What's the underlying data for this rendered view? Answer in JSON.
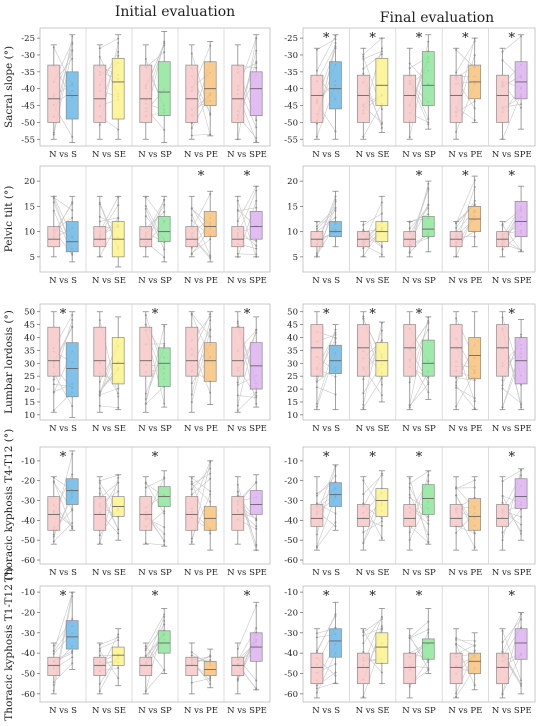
{
  "column_titles": [
    "Initial evaluation",
    "Final evaluation"
  ],
  "categories": [
    "N vs S",
    "N vs SE",
    "N vs SP",
    "N vs PE",
    "N vs SPE"
  ],
  "colors": {
    "normal": "#f8c8c8",
    "S": "#6ab7e6",
    "SE": "#fbf38a",
    "SP": "#8ee59c",
    "PE": "#f8c27a",
    "SPE": "#dcb2ef",
    "line": "#c8c8c8",
    "grid": "#d4d4d4"
  },
  "significance_marker": "*",
  "chart_data": [
    {
      "type": "box",
      "panel": "sacral-initial",
      "ylabel": "Sacral slope (°)",
      "yticks": [
        -25,
        -30,
        -35,
        -40,
        -45,
        -50,
        -55
      ],
      "ylim": [
        -57,
        -22
      ],
      "categories": [
        "N vs S",
        "N vs SE",
        "N vs SP",
        "N vs PE",
        "N vs SPE"
      ],
      "normal": {
        "q1": -50,
        "median": -43,
        "q3": -33,
        "whisker_low": -55,
        "whisker_high": -27
      },
      "compare": [
        {
          "q1": -49,
          "median": -42,
          "q3": -35,
          "whisker_low": -56,
          "whisker_high": -24
        },
        {
          "q1": -49,
          "median": -38,
          "q3": -31,
          "whisker_low": -55,
          "whisker_high": -24
        },
        {
          "q1": -48,
          "median": -41,
          "q3": -32,
          "whisker_low": -56,
          "whisker_high": -23
        },
        {
          "q1": -45,
          "median": -40,
          "q3": -32,
          "whisker_low": -54,
          "whisker_high": -26
        },
        {
          "q1": -48,
          "median": -40,
          "q3": -35,
          "whisker_low": -56,
          "whisker_high": -24
        }
      ],
      "significant": [
        false,
        false,
        false,
        false,
        false
      ]
    },
    {
      "type": "box",
      "panel": "sacral-final",
      "ylabel": "",
      "yticks": [
        -25,
        -30,
        -35,
        -40,
        -45,
        -50,
        -55
      ],
      "ylim": [
        -57,
        -22
      ],
      "categories": [
        "N vs S",
        "N vs SE",
        "N vs SP",
        "N vs PE",
        "N vs SPE"
      ],
      "normal": {
        "q1": -50,
        "median": -42,
        "q3": -36,
        "whisker_low": -55,
        "whisker_high": -28
      },
      "compare": [
        {
          "q1": -46,
          "median": -40,
          "q3": -32,
          "whisker_low": -55,
          "whisker_high": -24
        },
        {
          "q1": -45,
          "median": -39,
          "q3": -31,
          "whisker_low": -53,
          "whisker_high": -25
        },
        {
          "q1": -45,
          "median": -39,
          "q3": -29,
          "whisker_low": -52,
          "whisker_high": -24
        },
        {
          "q1": -43,
          "median": -38,
          "q3": -33,
          "whisker_low": -50,
          "whisker_high": -25
        },
        {
          "q1": -43,
          "median": -38,
          "q3": -32,
          "whisker_low": -52,
          "whisker_high": -24
        }
      ],
      "significant": [
        true,
        true,
        true,
        true,
        true
      ]
    },
    {
      "type": "box",
      "panel": "pelvic-initial",
      "ylabel": "Pelvic tilt (°)",
      "yticks": [
        5,
        10,
        15,
        20
      ],
      "ylim": [
        2,
        23
      ],
      "categories": [
        "N vs S",
        "N vs SE",
        "N vs SP",
        "N vs PE",
        "N vs SPE"
      ],
      "normal": {
        "q1": 7,
        "median": 8.5,
        "q3": 11,
        "whisker_low": 5,
        "whisker_high": 17
      },
      "compare": [
        {
          "q1": 6,
          "median": 8,
          "q3": 12,
          "whisker_low": 4,
          "whisker_high": 17
        },
        {
          "q1": 5,
          "median": 8.5,
          "q3": 12,
          "whisker_low": 3,
          "whisker_high": 17
        },
        {
          "q1": 8,
          "median": 10,
          "q3": 13,
          "whisker_low": 4,
          "whisker_high": 17
        },
        {
          "q1": 9,
          "median": 11,
          "q3": 14,
          "whisker_low": 4,
          "whisker_high": 18
        },
        {
          "q1": 8.5,
          "median": 11,
          "q3": 14,
          "whisker_low": 5,
          "whisker_high": 19
        }
      ],
      "significant": [
        false,
        false,
        false,
        true,
        true
      ]
    },
    {
      "type": "box",
      "panel": "pelvic-final",
      "ylabel": "",
      "yticks": [
        5,
        10,
        15,
        20
      ],
      "ylim": [
        2,
        23
      ],
      "categories": [
        "N vs S",
        "N vs SE",
        "N vs SP",
        "N vs PE",
        "N vs SPE"
      ],
      "normal": {
        "q1": 7,
        "median": 8.5,
        "q3": 10,
        "whisker_low": 5,
        "whisker_high": 12
      },
      "compare": [
        {
          "q1": 9,
          "median": 10,
          "q3": 12,
          "whisker_low": 7,
          "whisker_high": 18
        },
        {
          "q1": 8,
          "median": 10,
          "q3": 12,
          "whisker_low": 5,
          "whisker_high": 17
        },
        {
          "q1": 9,
          "median": 10.5,
          "q3": 13,
          "whisker_low": 6,
          "whisker_high": 20
        },
        {
          "q1": 10,
          "median": 12.5,
          "q3": 15,
          "whisker_low": 7,
          "whisker_high": 21
        },
        {
          "q1": 9,
          "median": 12,
          "q3": 16,
          "whisker_low": 6,
          "whisker_high": 19
        }
      ],
      "significant": [
        false,
        false,
        true,
        true,
        true
      ]
    },
    {
      "type": "box",
      "panel": "lumbar-initial",
      "ylabel": "Lumbar lordosis (°)",
      "yticks": [
        10,
        15,
        20,
        25,
        30,
        35,
        40,
        45,
        50
      ],
      "ylim": [
        8,
        53
      ],
      "categories": [
        "N vs S",
        "N vs SE",
        "N vs SP",
        "N vs PE",
        "N vs SPE"
      ],
      "normal": {
        "q1": 25,
        "median": 31,
        "q3": 44,
        "whisker_low": 11,
        "whisker_high": 50
      },
      "compare": [
        {
          "q1": 17,
          "median": 28,
          "q3": 38,
          "whisker_low": 9,
          "whisker_high": 50
        },
        {
          "q1": 22,
          "median": 30,
          "q3": 40,
          "whisker_low": 12,
          "whisker_high": 48
        },
        {
          "q1": 21,
          "median": 30,
          "q3": 36,
          "whisker_low": 13,
          "whisker_high": 45
        },
        {
          "q1": 23,
          "median": 31,
          "q3": 38,
          "whisker_low": 14,
          "whisker_high": 50
        },
        {
          "q1": 20,
          "median": 29,
          "q3": 38,
          "whisker_low": 13,
          "whisker_high": 48
        }
      ],
      "significant": [
        true,
        false,
        true,
        false,
        true
      ]
    },
    {
      "type": "box",
      "panel": "lumbar-final",
      "ylabel": "",
      "yticks": [
        10,
        15,
        20,
        25,
        30,
        35,
        40,
        45,
        50
      ],
      "ylim": [
        8,
        53
      ],
      "categories": [
        "N vs S",
        "N vs SE",
        "N vs SP",
        "N vs PE",
        "N vs SPE"
      ],
      "normal": {
        "q1": 25,
        "median": 36,
        "q3": 45,
        "whisker_low": 12,
        "whisker_high": 50
      },
      "compare": [
        {
          "q1": 26,
          "median": 31,
          "q3": 37,
          "whisker_low": 12,
          "whisker_high": 45
        },
        {
          "q1": 25,
          "median": 31,
          "q3": 38,
          "whisker_low": 15,
          "whisker_high": 46
        },
        {
          "q1": 25,
          "median": 30,
          "q3": 39,
          "whisker_low": 16,
          "whisker_high": 48
        },
        {
          "q1": 24,
          "median": 33,
          "q3": 40,
          "whisker_low": 12,
          "whisker_high": 50
        },
        {
          "q1": 22,
          "median": 31,
          "q3": 40,
          "whisker_low": 12,
          "whisker_high": 47
        }
      ],
      "significant": [
        true,
        true,
        true,
        false,
        true
      ]
    },
    {
      "type": "box",
      "panel": "thoracic-t4-initial",
      "ylabel": "Thoracic kyphosis T4-T12 (°)",
      "yticks": [
        -10,
        -20,
        -30,
        -40,
        -50,
        -60
      ],
      "ylim": [
        -62,
        -3
      ],
      "categories": [
        "N vs S",
        "N vs SE",
        "N vs SP",
        "N vs PE",
        "N vs SPE"
      ],
      "normal": {
        "q1": -45,
        "median": -37,
        "q3": -28,
        "whisker_low": -52,
        "whisker_high": -18
      },
      "compare": [
        {
          "q1": -32,
          "median": -25,
          "q3": -19,
          "whisker_low": -45,
          "whisker_high": -5
        },
        {
          "q1": -38,
          "median": -33,
          "q3": -28,
          "whisker_low": -50,
          "whisker_high": -17
        },
        {
          "q1": -33,
          "median": -28,
          "q3": -23,
          "whisker_low": -53,
          "whisker_high": -15
        },
        {
          "q1": -45,
          "median": -39,
          "q3": -33,
          "whisker_low": -55,
          "whisker_high": -10
        },
        {
          "q1": -37,
          "median": -32,
          "q3": -25,
          "whisker_low": -55,
          "whisker_high": -17
        }
      ],
      "significant": [
        true,
        false,
        true,
        false,
        false
      ]
    },
    {
      "type": "box",
      "panel": "thoracic-t4-final",
      "ylabel": "",
      "yticks": [
        -10,
        -20,
        -30,
        -40,
        -50,
        -60
      ],
      "ylim": [
        -62,
        -3
      ],
      "categories": [
        "N vs S",
        "N vs SE",
        "N vs SP",
        "N vs PE",
        "N vs SPE"
      ],
      "normal": {
        "q1": -43,
        "median": -39,
        "q3": -32,
        "whisker_low": -55,
        "whisker_high": -18
      },
      "compare": [
        {
          "q1": -33,
          "median": -27,
          "q3": -21,
          "whisker_low": -45,
          "whisker_high": -12
        },
        {
          "q1": -38,
          "median": -30,
          "q3": -24,
          "whisker_low": -50,
          "whisker_high": -15
        },
        {
          "q1": -37,
          "median": -29,
          "q3": -22,
          "whisker_low": -52,
          "whisker_high": -15
        },
        {
          "q1": -45,
          "median": -38,
          "q3": -29,
          "whisker_low": -55,
          "whisker_high": -18
        },
        {
          "q1": -34,
          "median": -28,
          "q3": -19,
          "whisker_low": -50,
          "whisker_high": -14
        }
      ],
      "significant": [
        true,
        true,
        true,
        false,
        true
      ]
    },
    {
      "type": "box",
      "panel": "thoracic-t1-initial",
      "ylabel": "Thoracic kyphosis T1-T12 (°)",
      "yticks": [
        -10,
        -20,
        -30,
        -40,
        -50,
        -60
      ],
      "ylim": [
        -64,
        -7
      ],
      "categories": [
        "N vs S",
        "N vs SE",
        "N vs SP",
        "N vs PE",
        "N vs SPE"
      ],
      "normal": {
        "q1": -51,
        "median": -46,
        "q3": -42,
        "whisker_low": -60,
        "whisker_high": -35
      },
      "compare": [
        {
          "q1": -38,
          "median": -32,
          "q3": -24,
          "whisker_low": -48,
          "whisker_high": -10
        },
        {
          "q1": -46,
          "median": -41,
          "q3": -37,
          "whisker_low": -56,
          "whisker_high": -28
        },
        {
          "q1": -40,
          "median": -35,
          "q3": -29,
          "whisker_low": -50,
          "whisker_high": -18
        },
        {
          "q1": -51,
          "median": -48,
          "q3": -44,
          "whisker_low": -57,
          "whisker_high": -38
        },
        {
          "q1": -44,
          "median": -37,
          "q3": -30,
          "whisker_low": -58,
          "whisker_high": -15
        }
      ],
      "significant": [
        true,
        false,
        true,
        false,
        true
      ]
    },
    {
      "type": "box",
      "panel": "thoracic-t1-final",
      "ylabel": "",
      "yticks": [
        -10,
        -20,
        -30,
        -40,
        -50,
        -60
      ],
      "ylim": [
        -64,
        -7
      ],
      "categories": [
        "N vs S",
        "N vs SE",
        "N vs SP",
        "N vs PE",
        "N vs SPE"
      ],
      "normal": {
        "q1": -55,
        "median": -47,
        "q3": -40,
        "whisker_low": -62,
        "whisker_high": -28
      },
      "compare": [
        {
          "q1": -42,
          "median": -34,
          "q3": -28,
          "whisker_low": -55,
          "whisker_high": -15
        },
        {
          "q1": -45,
          "median": -37,
          "q3": -30,
          "whisker_low": -55,
          "whisker_high": -18
        },
        {
          "q1": -43,
          "median": -35,
          "q3": -33,
          "whisker_low": -50,
          "whisker_high": -18
        },
        {
          "q1": -50,
          "median": -44,
          "q3": -40,
          "whisker_low": -58,
          "whisker_high": -30
        },
        {
          "q1": -43,
          "median": -35,
          "q3": -28,
          "whisker_low": -60,
          "whisker_high": -20
        }
      ],
      "significant": [
        true,
        true,
        true,
        false,
        true
      ]
    }
  ]
}
